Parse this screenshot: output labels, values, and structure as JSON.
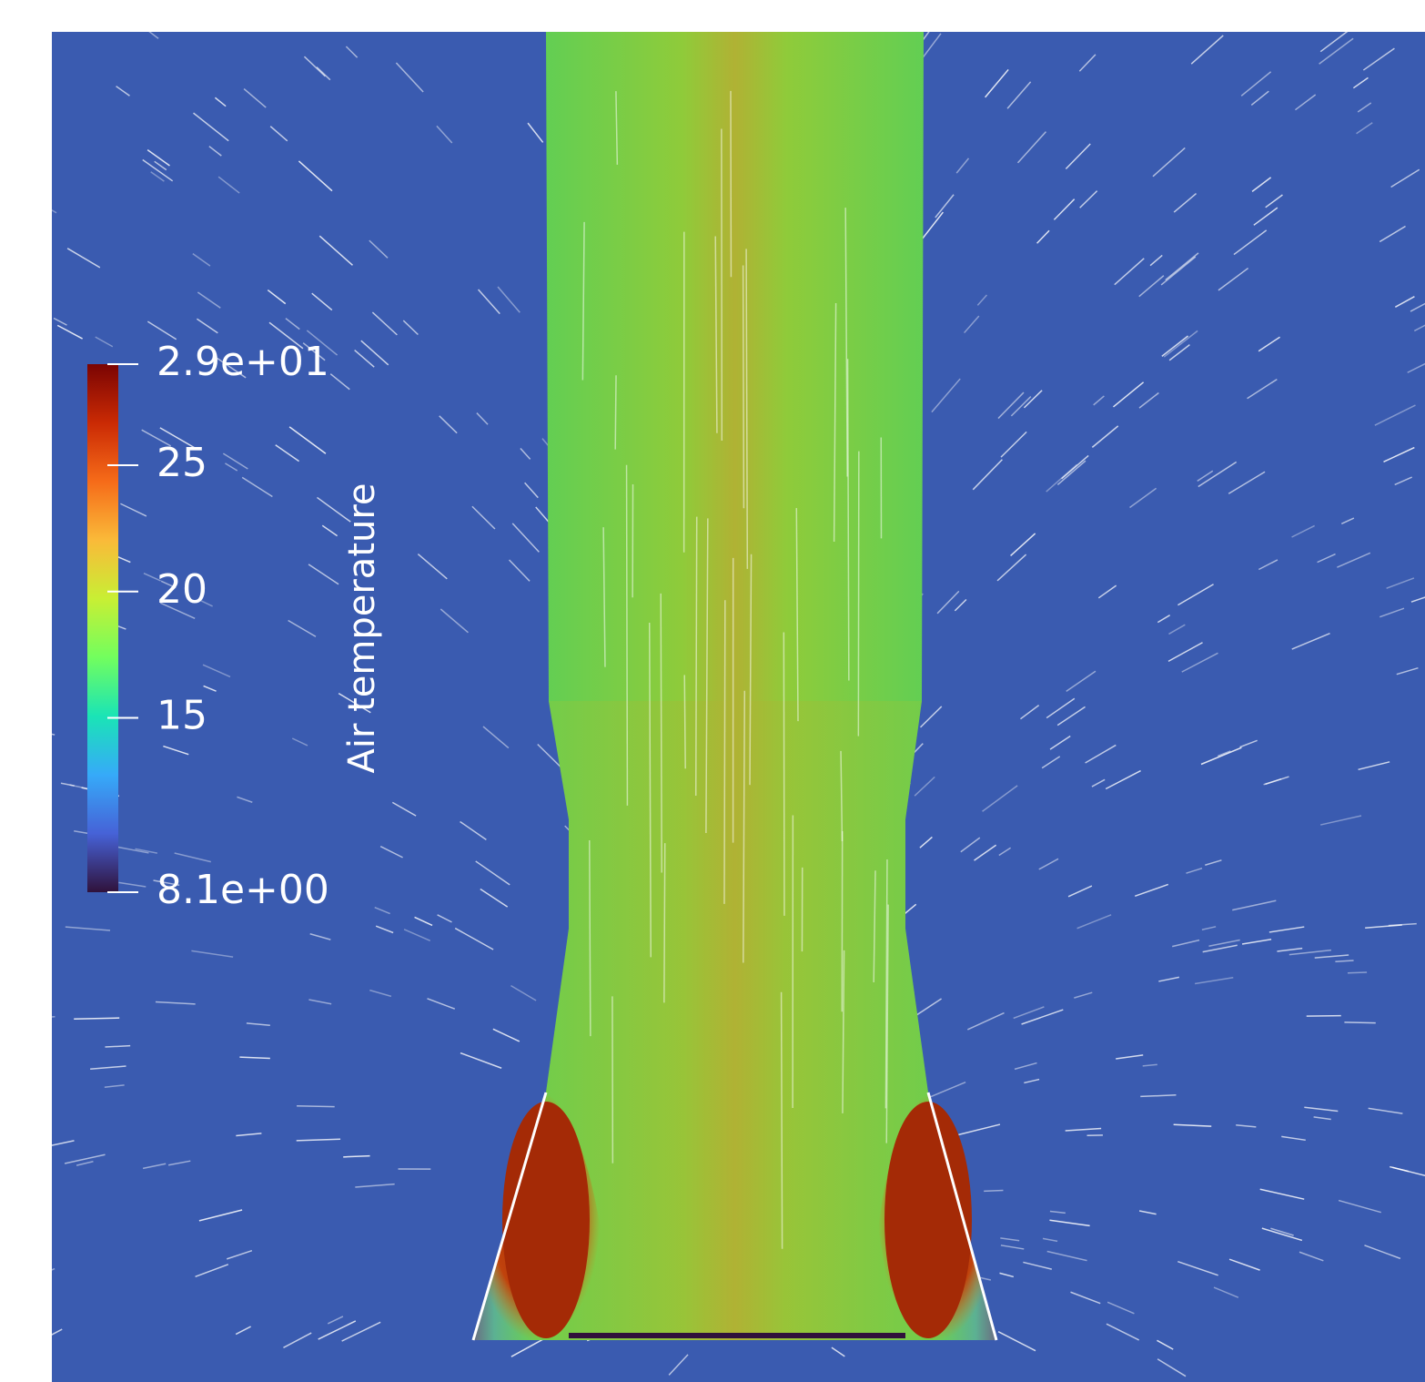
{
  "chart_data": {
    "type": "field",
    "colorbar": {
      "title": "Air temperature",
      "clim": [
        8.1,
        29
      ],
      "cticks": [
        {
          "value": 29,
          "label": "2.9e+01"
        },
        25,
        20,
        15,
        {
          "value": 8.1,
          "label": "8.1e+00"
        }
      ],
      "colors": [
        "#30123b",
        "#4662d7",
        "#36aaf9",
        "#1ae4b6",
        "#72fe5e",
        "#c8ef34",
        "#faba39",
        "#f66b19",
        "#ca2a04",
        "#7a0403"
      ]
    }
  }
}
